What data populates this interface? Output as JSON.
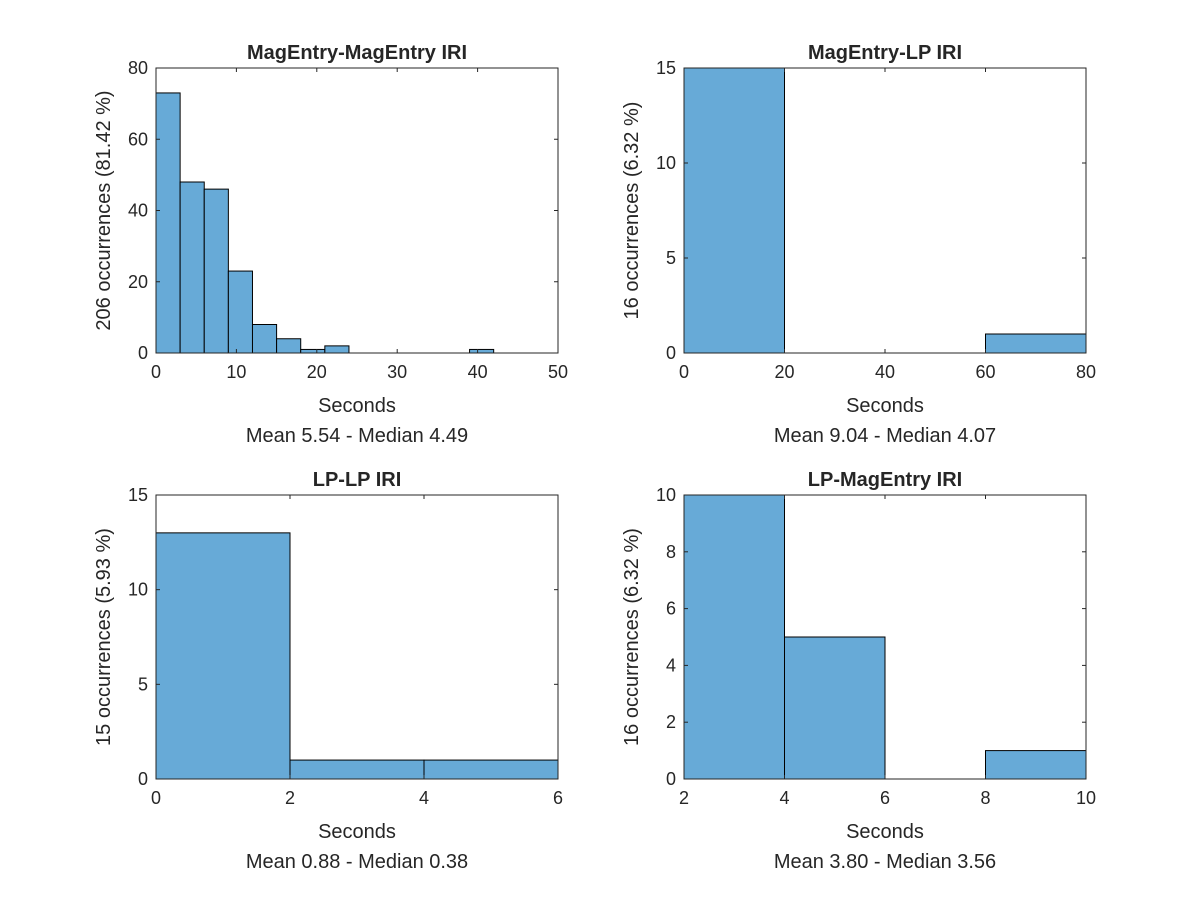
{
  "figure": {
    "bar_color": "#67AAD7",
    "edge_color": "#000000",
    "axis_color": "#262626"
  },
  "chart_data": [
    {
      "type": "bar",
      "title": "MagEntry-MagEntry IRI",
      "xlabel": "Seconds",
      "ylabel": "206 occurrences (81.42 %)",
      "stats": "Mean 5.54 - Median 4.49",
      "xlim": [
        0,
        50
      ],
      "ylim": [
        0,
        80
      ],
      "xticks": [
        0,
        10,
        20,
        30,
        40,
        50
      ],
      "yticks": [
        0,
        20,
        40,
        60,
        80
      ],
      "bin_edges": [
        0,
        3,
        6,
        9,
        12,
        15,
        18,
        21,
        24,
        27,
        30,
        33,
        36,
        39,
        42
      ],
      "values": [
        73,
        48,
        46,
        23,
        8,
        4,
        1,
        2,
        0,
        0,
        0,
        0,
        0,
        1
      ],
      "grid": false,
      "legend": "none"
    },
    {
      "type": "bar",
      "title": "MagEntry-LP IRI",
      "xlabel": "Seconds",
      "ylabel": "16 occurrences (6.32 %)",
      "stats": "Mean 9.04 - Median 4.07",
      "xlim": [
        0,
        80
      ],
      "ylim": [
        0,
        15
      ],
      "xticks": [
        0,
        20,
        40,
        60,
        80
      ],
      "yticks": [
        0,
        5,
        10,
        15
      ],
      "bin_edges": [
        0,
        20,
        40,
        60,
        80
      ],
      "values": [
        15,
        0,
        0,
        1
      ],
      "grid": false,
      "legend": "none"
    },
    {
      "type": "bar",
      "title": "LP-LP IRI",
      "xlabel": "Seconds",
      "ylabel": "15 occurrences (5.93 %)",
      "stats": "Mean 0.88 - Median 0.38",
      "xlim": [
        0,
        6
      ],
      "ylim": [
        0,
        15
      ],
      "xticks": [
        0,
        2,
        4,
        6
      ],
      "yticks": [
        0,
        5,
        10,
        15
      ],
      "bin_edges": [
        0,
        2,
        4,
        6
      ],
      "values": [
        13,
        1,
        1
      ],
      "grid": false,
      "legend": "none"
    },
    {
      "type": "bar",
      "title": "LP-MagEntry IRI",
      "xlabel": "Seconds",
      "ylabel": "16 occurrences (6.32 %)",
      "stats": "Mean 3.80 - Median 3.56",
      "xlim": [
        2,
        10
      ],
      "ylim": [
        0,
        10
      ],
      "xticks": [
        2,
        4,
        6,
        8,
        10
      ],
      "yticks": [
        0,
        2,
        4,
        6,
        8,
        10
      ],
      "bin_edges": [
        2,
        4,
        6,
        8,
        10
      ],
      "values": [
        10,
        5,
        0,
        1
      ],
      "grid": false,
      "legend": "none"
    }
  ]
}
